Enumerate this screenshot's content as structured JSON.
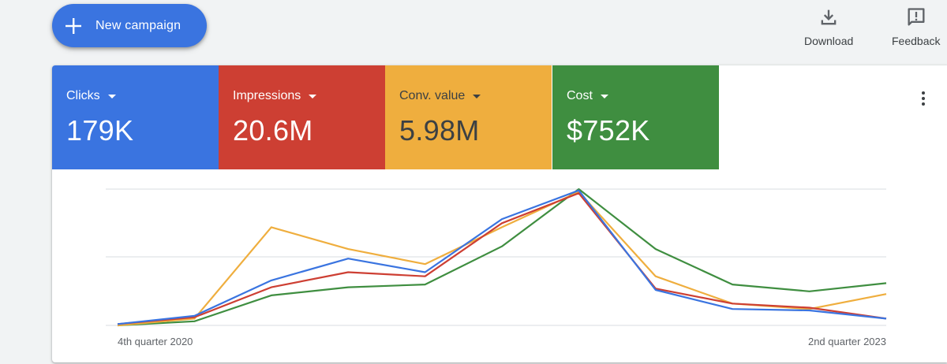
{
  "toolbar": {
    "new_campaign_label": "New campaign",
    "download_label": "Download",
    "feedback_label": "Feedback"
  },
  "metrics": [
    {
      "label": "Clicks",
      "value": "179K",
      "color": "#3a74e0"
    },
    {
      "label": "Impressions",
      "value": "20.6M",
      "color": "#cd3f33"
    },
    {
      "label": "Conv. value",
      "value": "5.98M",
      "color": "#efae3e",
      "text_color": "#3c4043"
    },
    {
      "label": "Cost",
      "value": "$752K",
      "color": "#3f8e40"
    }
  ],
  "chart_data": {
    "type": "line",
    "x_tick_labels": [
      "4th quarter 2020",
      "2nd quarter 2023"
    ],
    "ylim": [
      0,
      100
    ],
    "grid": true,
    "series": [
      {
        "name": "Clicks",
        "color": "#3a74e0",
        "values": [
          1,
          7,
          33,
          49,
          39,
          78,
          99,
          26,
          12,
          11,
          5
        ]
      },
      {
        "name": "Impressions",
        "color": "#cd3f33",
        "values": [
          1,
          6,
          28,
          39,
          36,
          75,
          97,
          27,
          16,
          13,
          5
        ]
      },
      {
        "name": "Conv. value",
        "color": "#efae3e",
        "values": [
          0,
          5,
          72,
          56,
          45,
          72,
          98,
          36,
          16,
          12,
          23
        ]
      },
      {
        "name": "Cost",
        "color": "#3f8e40",
        "values": [
          0,
          3,
          22,
          28,
          30,
          58,
          100,
          56,
          30,
          25,
          31
        ]
      }
    ]
  }
}
